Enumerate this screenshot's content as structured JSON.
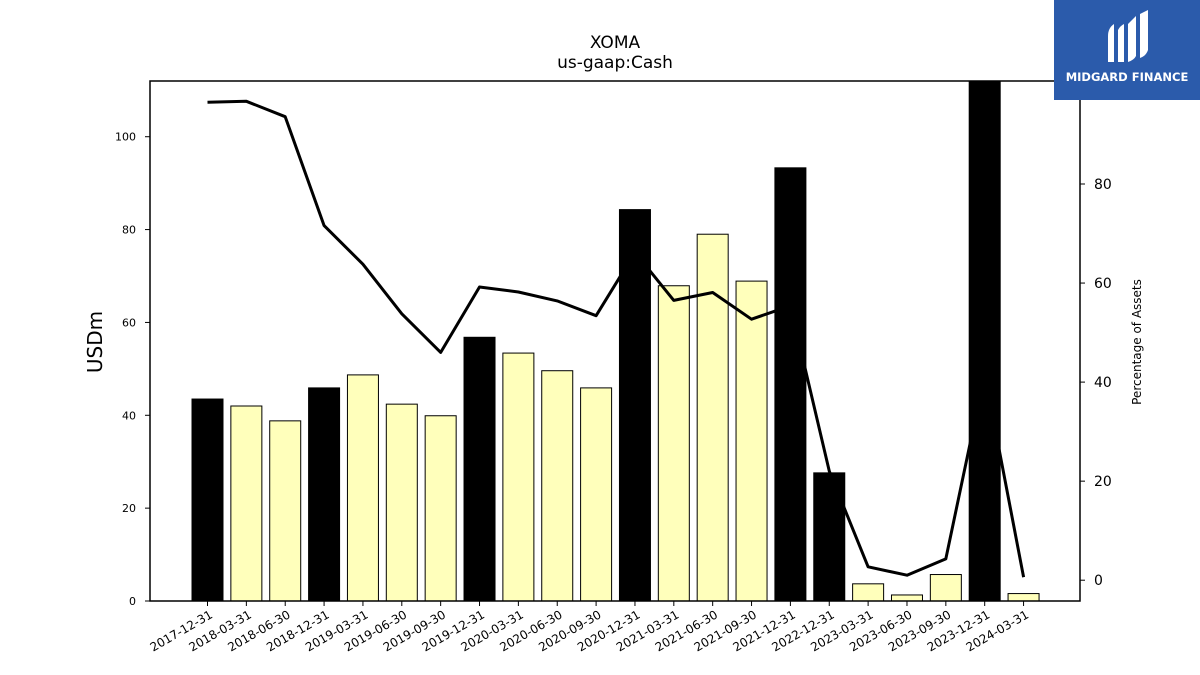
{
  "logo": {
    "text": "MIDGARD FINANCE",
    "color": "#2b5bab"
  },
  "chart_data": {
    "type": "bar",
    "title": "XOMA",
    "subtitle": "us-gaap:Cash",
    "ylabel": "USDm",
    "y2label": "Percentage of Assets",
    "ylim": [
      0,
      112
    ],
    "y2lim": [
      -4.2,
      100.8
    ],
    "yticks": [
      0,
      20,
      40,
      60,
      80,
      100
    ],
    "y2ticks": [
      0,
      20,
      40,
      60,
      80
    ],
    "grid": false,
    "colors": {
      "annual_bar": "#000000",
      "quarter_bar": "#ffffbb",
      "line": "#000000",
      "bar_edge": "#000000"
    },
    "categories": [
      "2017-12-31",
      "2018-03-31",
      "2018-06-30",
      "2018-12-31",
      "2019-03-31",
      "2019-06-30",
      "2019-09-30",
      "2019-12-31",
      "2020-03-31",
      "2020-06-30",
      "2020-09-30",
      "2020-12-31",
      "2021-03-31",
      "2021-06-30",
      "2021-09-30",
      "2021-12-31",
      "2022-12-31",
      "2023-03-31",
      "2023-06-30",
      "2023-09-30",
      "2023-12-31",
      "2024-03-31"
    ],
    "annual": [
      true,
      false,
      false,
      true,
      false,
      false,
      false,
      true,
      false,
      false,
      false,
      true,
      false,
      false,
      false,
      true,
      true,
      false,
      false,
      false,
      true,
      false
    ],
    "series": [
      {
        "type": "bar",
        "axis": "left",
        "values": [
          43.5,
          42.0,
          38.8,
          45.9,
          48.7,
          42.4,
          39.9,
          56.8,
          53.4,
          49.6,
          45.9,
          84.3,
          67.9,
          79.0,
          68.9,
          93.3,
          27.6,
          3.7,
          1.3,
          5.7,
          112.0,
          1.6
        ]
      },
      {
        "type": "line",
        "axis": "right",
        "values": [
          96.5,
          96.7,
          93.6,
          71.6,
          63.8,
          53.8,
          46.0,
          59.2,
          58.2,
          56.4,
          53.4,
          66.2,
          56.5,
          58.1,
          52.7,
          55.4,
          22.0,
          2.7,
          1.0,
          4.3,
          41.6,
          0.6
        ]
      }
    ]
  }
}
